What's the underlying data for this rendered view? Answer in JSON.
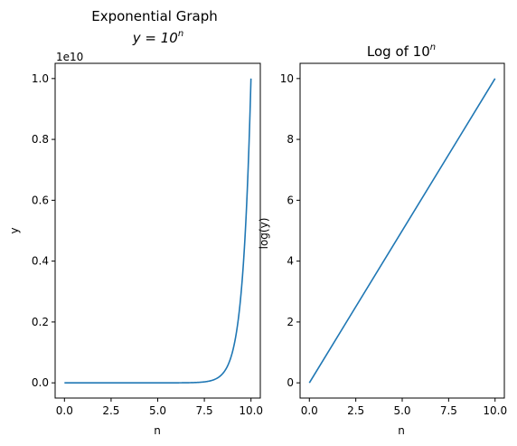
{
  "chart_data": [
    {
      "type": "line",
      "title_line1": "Exponential Graph",
      "title_math": {
        "lhs": "y = 10",
        "exp": "n"
      },
      "xlabel": "n",
      "ylabel": "y",
      "y_offset_label": "1e10",
      "xlim": [
        0,
        10
      ],
      "ylim": [
        0,
        10000000000
      ],
      "xticks": [
        0.0,
        2.5,
        5.0,
        7.5,
        10.0
      ],
      "xtick_labels": [
        "0.0",
        "2.5",
        "5.0",
        "7.5",
        "10.0"
      ],
      "yticks": [
        0,
        2000000000,
        4000000000,
        6000000000,
        8000000000,
        10000000000
      ],
      "ytick_labels": [
        "0.0",
        "0.2",
        "0.4",
        "0.6",
        "0.8",
        "1.0"
      ],
      "grid": false,
      "series": [
        {
          "function": "10^n",
          "n_range": [
            0,
            10
          ],
          "color": "#1f77b4"
        }
      ]
    },
    {
      "type": "line",
      "title_math": {
        "base": "Log of 10",
        "exp": "n"
      },
      "xlabel": "n",
      "ylabel": "log(y)",
      "xlim": [
        0,
        10
      ],
      "ylim": [
        0,
        10
      ],
      "xticks": [
        0.0,
        2.5,
        5.0,
        7.5,
        10.0
      ],
      "xtick_labels": [
        "0.0",
        "2.5",
        "5.0",
        "7.5",
        "10.0"
      ],
      "yticks": [
        0,
        2,
        4,
        6,
        8,
        10
      ],
      "ytick_labels": [
        "0",
        "2",
        "4",
        "6",
        "8",
        "10"
      ],
      "grid": false,
      "series": [
        {
          "x": [
            0,
            10
          ],
          "y": [
            0,
            10
          ],
          "color": "#1f77b4"
        }
      ]
    }
  ]
}
